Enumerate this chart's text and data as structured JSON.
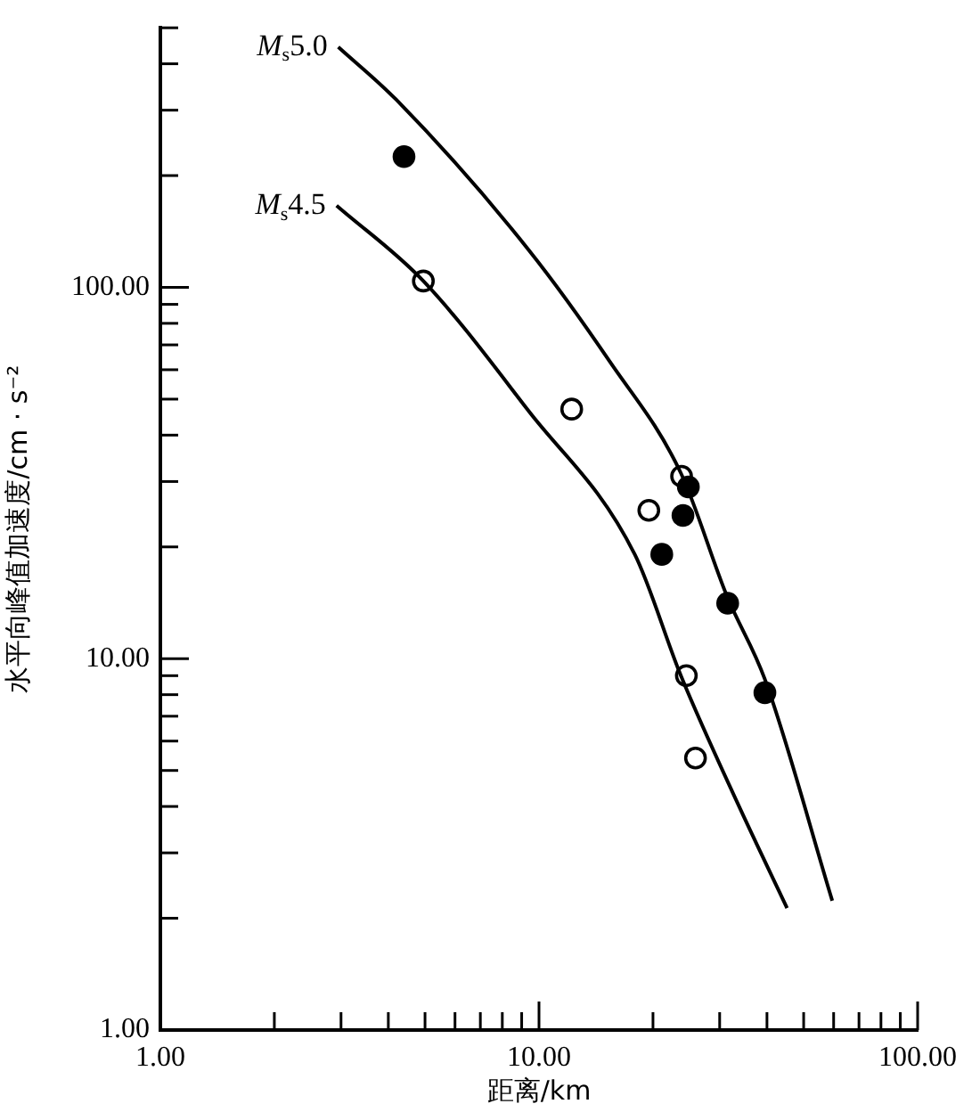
{
  "chart_data": {
    "type": "scatter",
    "xlabel": "距离/km",
    "ylabel": "水平向峰值加速度/cm · s⁻²",
    "log": "xy",
    "grid": false,
    "legend": false,
    "xlim": [
      1,
      100
    ],
    "ylim": [
      1,
      500
    ],
    "xticks": [
      {
        "value": 1,
        "label": "1.00"
      },
      {
        "value": 2,
        "label": null
      },
      {
        "value": 3,
        "label": null
      },
      {
        "value": 4,
        "label": null
      },
      {
        "value": 5,
        "label": null
      },
      {
        "value": 6,
        "label": null
      },
      {
        "value": 7,
        "label": null
      },
      {
        "value": 8,
        "label": null
      },
      {
        "value": 9,
        "label": null
      },
      {
        "value": 10,
        "label": "10.00"
      },
      {
        "value": 20,
        "label": null
      },
      {
        "value": 30,
        "label": null
      },
      {
        "value": 40,
        "label": null
      },
      {
        "value": 50,
        "label": null
      },
      {
        "value": 60,
        "label": null
      },
      {
        "value": 70,
        "label": null
      },
      {
        "value": 80,
        "label": null
      },
      {
        "value": 90,
        "label": null
      },
      {
        "value": 100,
        "label": "100.00"
      }
    ],
    "yticks": [
      {
        "value": 1,
        "label": "1.00"
      },
      {
        "value": 2,
        "label": null
      },
      {
        "value": 3,
        "label": null
      },
      {
        "value": 4,
        "label": null
      },
      {
        "value": 5,
        "label": null
      },
      {
        "value": 6,
        "label": null
      },
      {
        "value": 7,
        "label": null
      },
      {
        "value": 8,
        "label": null
      },
      {
        "value": 9,
        "label": null
      },
      {
        "value": 10,
        "label": "10.00"
      },
      {
        "value": 20,
        "label": null
      },
      {
        "value": 30,
        "label": null
      },
      {
        "value": 40,
        "label": null
      },
      {
        "value": 50,
        "label": null
      },
      {
        "value": 60,
        "label": null
      },
      {
        "value": 70,
        "label": null
      },
      {
        "value": 80,
        "label": null
      },
      {
        "value": 90,
        "label": null
      },
      {
        "value": 100,
        "label": "100.00"
      },
      {
        "value": 200,
        "label": null
      },
      {
        "value": 300,
        "label": null
      },
      {
        "value": 400,
        "label": null
      },
      {
        "value": 500,
        "label": null
      }
    ],
    "series": [
      {
        "name": "M$_{s}$5.0",
        "type": "line",
        "marker": "none",
        "color": "#000000",
        "x": [
          2.95,
          4.2,
          9.4,
          15.4,
          23.7,
          31.4,
          39.5,
          59.5
        ],
        "values": [
          444,
          320,
          126,
          63,
          31.6,
          14.7,
          8.8,
          2.23
        ]
      },
      {
        "name": "M$_{s}$4.5",
        "type": "line",
        "marker": "none",
        "color": "#000000",
        "x": [
          2.92,
          4.95,
          9.4,
          17.9,
          23.7,
          33.5,
          45.2
        ],
        "values": [
          166,
          104,
          46.4,
          19.1,
          9.0,
          4.07,
          2.13
        ]
      },
      {
        "type": "scatter",
        "marker": "circle",
        "color": "#000000",
        "x": [
          4.4,
          24.0,
          24.8,
          21.1,
          31.5,
          39.5
        ],
        "values": [
          225,
          24.3,
          29,
          19.1,
          14.1,
          8.1
        ]
      },
      {
        "type": "scatter",
        "marker": "circle",
        "color": "#ffffff",
        "x": [
          4.95,
          12.2,
          19.5,
          23.8,
          24.5,
          25.9
        ],
        "values": [
          104,
          47,
          25.1,
          31,
          9.0,
          5.4
        ]
      }
    ]
  }
}
